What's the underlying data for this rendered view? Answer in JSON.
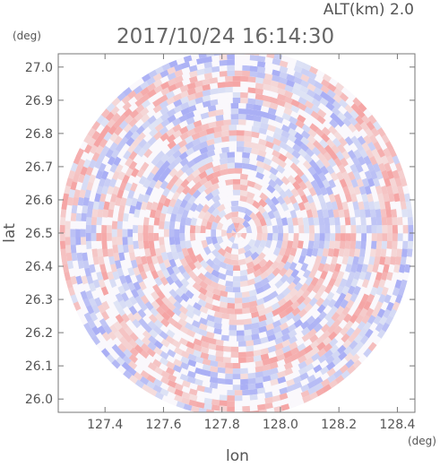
{
  "chart_data": {
    "type": "heatmap",
    "title": "2017/10/24 16:14:30",
    "altitude_label": "ALT(km) 2.0",
    "xlabel": "lon",
    "ylabel": "lat",
    "x_unit": "(deg)",
    "y_unit": "(deg)",
    "xlim": [
      127.24,
      128.46
    ],
    "ylim": [
      25.96,
      27.04
    ],
    "x_ticks": [
      "127.4",
      "127.6",
      "127.8",
      "128.0",
      "128.2",
      "128.4"
    ],
    "x_tick_values": [
      127.4,
      127.6,
      127.8,
      128.0,
      128.2,
      128.4
    ],
    "y_ticks": [
      "26.0",
      "26.1",
      "26.2",
      "26.3",
      "26.4",
      "26.5",
      "26.6",
      "26.7",
      "26.8",
      "26.9",
      "27.0"
    ],
    "y_tick_values": [
      26.0,
      26.1,
      26.2,
      26.3,
      26.4,
      26.5,
      26.6,
      26.7,
      26.8,
      26.9,
      27.0
    ],
    "radar_center": {
      "lon": 127.85,
      "lat": 26.5
    },
    "radar_radius_deg": {
      "lon": 0.605,
      "lat": 0.555
    },
    "colors": {
      "positive": "#f0a0a0",
      "negative": "#a0a8f0",
      "neutral": "#ffffff",
      "frame": "#777777"
    }
  }
}
